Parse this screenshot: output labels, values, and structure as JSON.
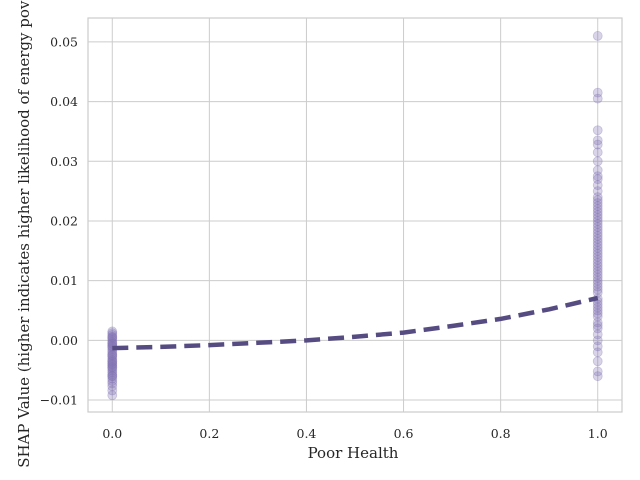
{
  "chart_data": {
    "type": "scatter",
    "title": "",
    "xlabel": "Poor Health",
    "ylabel": "SHAP Value (higher indicates higher likelihood of energy poverty)",
    "xlim": [
      -0.05,
      1.05
    ],
    "ylim": [
      -0.012,
      0.054
    ],
    "xticks": [
      0.0,
      0.2,
      0.4,
      0.6,
      0.8,
      1.0
    ],
    "xtick_labels": [
      "0.0",
      "0.2",
      "0.4",
      "0.6",
      "0.8",
      "1.0"
    ],
    "yticks": [
      -0.01,
      0.0,
      0.01,
      0.02,
      0.03,
      0.04,
      0.05
    ],
    "ytick_labels": [
      "−0.01",
      "0.00",
      "0.01",
      "0.02",
      "0.03",
      "0.04",
      "0.05"
    ],
    "grid": true,
    "legend": "none",
    "colors": {
      "points": "#8172b3",
      "trend": "#574c82",
      "grid": "#cccccc",
      "spine": "#cccccc"
    },
    "series": [
      {
        "kind": "points",
        "x": [
          0,
          0,
          0,
          0,
          0,
          0,
          0,
          0,
          0,
          0,
          0,
          0,
          0,
          0,
          0,
          0,
          0,
          0,
          0,
          0,
          0,
          0,
          0,
          0,
          0,
          0,
          0,
          0,
          0,
          0,
          0,
          0,
          0,
          0,
          0,
          0,
          0,
          0,
          0,
          0,
          1,
          1,
          1,
          1,
          1,
          1,
          1,
          1,
          1,
          1,
          1,
          1,
          1,
          1,
          1,
          1,
          1,
          1,
          1,
          1,
          1,
          1,
          1,
          1,
          1,
          1,
          1,
          1,
          1,
          1,
          1,
          1,
          1,
          1,
          1,
          1,
          1,
          1,
          1,
          1,
          1,
          1,
          1,
          1,
          1,
          1,
          1,
          1,
          1,
          1,
          1,
          1,
          1,
          1,
          1,
          1,
          1,
          1,
          1,
          1,
          1,
          1,
          1
        ],
        "y": [
          0.0015,
          0.0012,
          0.0009,
          0.0006,
          0.0003,
          0.0,
          -0.0003,
          -0.0006,
          -0.0009,
          -0.0012,
          -0.0015,
          -0.0018,
          -0.0021,
          -0.0024,
          -0.0027,
          -0.003,
          -0.0033,
          -0.0036,
          -0.0039,
          -0.0042,
          -0.0045,
          -0.0048,
          -0.0051,
          -0.0054,
          -0.0057,
          -0.006,
          -0.0064,
          -0.0068,
          -0.0072,
          -0.0077,
          -0.0084,
          -0.0092,
          -0.0005,
          -0.0025,
          -0.004,
          -0.001,
          -0.0035,
          0.0005,
          -0.006,
          -0.0045,
          0.051,
          0.0415,
          0.0405,
          0.0352,
          0.0335,
          0.0328,
          0.0315,
          0.03,
          0.0285,
          0.0275,
          0.027,
          0.026,
          0.025,
          0.024,
          0.023,
          0.022,
          0.021,
          0.02,
          0.019,
          0.018,
          0.017,
          0.016,
          0.015,
          0.014,
          0.013,
          0.012,
          0.011,
          0.01,
          0.009,
          0.008,
          0.007,
          0.006,
          0.005,
          0.004,
          0.003,
          0.002,
          0.001,
          0.0,
          -0.001,
          -0.002,
          -0.0035,
          -0.0052,
          -0.006,
          0.0235,
          0.0185,
          0.0145,
          0.0105,
          0.0065,
          0.0025,
          0.0155,
          0.0125,
          0.0095,
          0.0055,
          0.0195,
          0.0225,
          0.0115,
          0.0085,
          0.0045,
          0.0135,
          0.0165,
          0.0175,
          0.0205,
          0.0215
        ]
      },
      {
        "kind": "trend",
        "style": "dashed",
        "x": [
          0.0,
          0.1,
          0.2,
          0.3,
          0.4,
          0.5,
          0.6,
          0.7,
          0.8,
          0.9,
          1.0
        ],
        "y": [
          -0.0013,
          -0.0011,
          -0.0008,
          -0.0004,
          0.0,
          0.0006,
          0.0013,
          0.0024,
          0.0036,
          0.0052,
          0.0071
        ]
      }
    ]
  }
}
